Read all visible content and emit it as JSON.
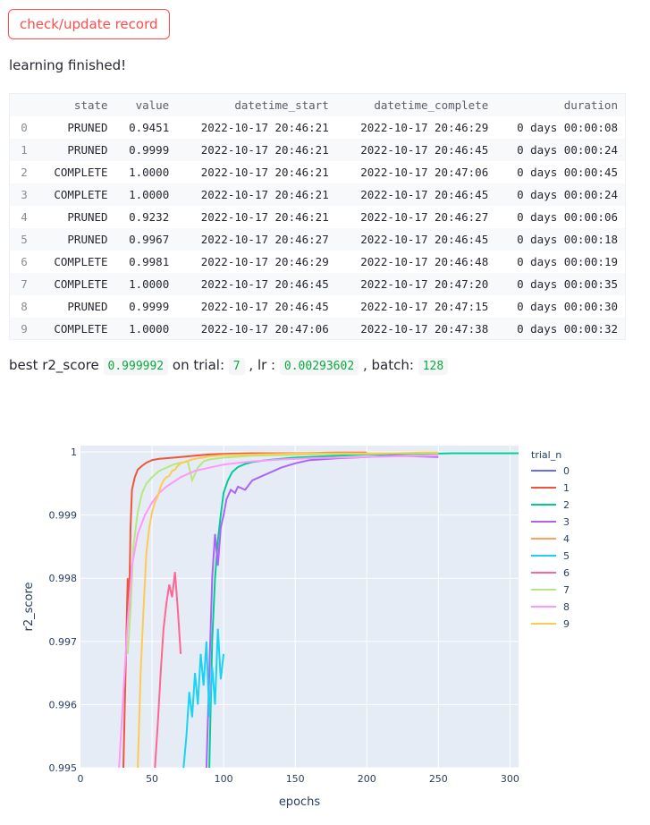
{
  "button": {
    "label": "check/update record"
  },
  "status_text": "learning finished!",
  "table": {
    "columns": [
      "",
      "state",
      "value",
      "datetime_start",
      "datetime_complete",
      "duration"
    ],
    "rows": [
      [
        "0",
        "PRUNED",
        "0.9451",
        "2022-10-17 20:46:21",
        "2022-10-17 20:46:29",
        "0 days 00:00:08"
      ],
      [
        "1",
        "PRUNED",
        "0.9999",
        "2022-10-17 20:46:21",
        "2022-10-17 20:46:45",
        "0 days 00:00:24"
      ],
      [
        "2",
        "COMPLETE",
        "1.0000",
        "2022-10-17 20:46:21",
        "2022-10-17 20:47:06",
        "0 days 00:00:45"
      ],
      [
        "3",
        "COMPLETE",
        "1.0000",
        "2022-10-17 20:46:21",
        "2022-10-17 20:46:45",
        "0 days 00:00:24"
      ],
      [
        "4",
        "PRUNED",
        "0.9232",
        "2022-10-17 20:46:21",
        "2022-10-17 20:46:27",
        "0 days 00:00:06"
      ],
      [
        "5",
        "PRUNED",
        "0.9967",
        "2022-10-17 20:46:27",
        "2022-10-17 20:46:45",
        "0 days 00:00:18"
      ],
      [
        "6",
        "COMPLETE",
        "0.9981",
        "2022-10-17 20:46:29",
        "2022-10-17 20:46:48",
        "0 days 00:00:19"
      ],
      [
        "7",
        "COMPLETE",
        "1.0000",
        "2022-10-17 20:46:45",
        "2022-10-17 20:47:20",
        "0 days 00:00:35"
      ],
      [
        "8",
        "PRUNED",
        "0.9999",
        "2022-10-17 20:46:45",
        "2022-10-17 20:47:15",
        "0 days 00:00:30"
      ],
      [
        "9",
        "COMPLETE",
        "1.0000",
        "2022-10-17 20:47:06",
        "2022-10-17 20:47:38",
        "0 days 00:00:32"
      ]
    ]
  },
  "best": {
    "prefix": "best r2_score",
    "score": "0.999992",
    "trial_label": "on trial:",
    "trial": "7",
    "lr_label": ", lr :",
    "lr": "0.00293602",
    "batch_label": ", batch:",
    "batch": "128"
  },
  "colors": {
    "accent": "#ff4b4b",
    "code_green": "#09ab3b",
    "plot_bg": "#e5ecf6"
  },
  "chart_data": {
    "type": "line",
    "xlabel": "epochs",
    "ylabel": "r2_score",
    "xlim": [
      0,
      306
    ],
    "ylim": [
      0.995,
      1.0001
    ],
    "xticks": [
      0,
      50,
      100,
      150,
      200,
      250,
      300
    ],
    "yticks": [
      0.995,
      0.996,
      0.997,
      0.998,
      0.999,
      1.0
    ],
    "ytick_labels": [
      "0.995",
      "0.996",
      "0.997",
      "0.998",
      "0.999",
      "1"
    ],
    "grid": true,
    "legend": {
      "title": "trial_n",
      "placement": "right"
    },
    "series": [
      {
        "name": "0",
        "color": "#636efa",
        "x": [],
        "y": []
      },
      {
        "name": "1",
        "color": "#ef553b",
        "x": [
          30,
          33,
          34,
          35,
          36,
          38,
          40,
          43,
          46,
          50,
          55,
          60,
          70,
          80,
          90,
          100,
          120,
          150,
          180,
          200
        ],
        "y": [
          0.995,
          0.998,
          0.9975,
          0.9988,
          0.9994,
          0.9996,
          0.99972,
          0.99978,
          0.99983,
          0.99987,
          0.99989,
          0.9999,
          0.99992,
          0.99994,
          0.99996,
          0.99997,
          0.99998,
          0.99998,
          0.99999,
          0.99999
        ]
      },
      {
        "name": "2",
        "color": "#00cc96",
        "x": [
          90,
          92,
          94,
          96,
          98,
          100,
          103,
          106,
          110,
          115,
          120,
          130,
          140,
          150,
          160,
          170,
          180,
          190,
          200,
          210,
          220,
          240,
          260,
          280,
          300,
          306
        ],
        "y": [
          0.995,
          0.997,
          0.998,
          0.9986,
          0.999,
          0.99935,
          0.99955,
          0.99968,
          0.99976,
          0.99981,
          0.99984,
          0.99987,
          0.99989,
          0.99991,
          0.99992,
          0.99993,
          0.99994,
          0.99995,
          0.99996,
          0.99996,
          0.99997,
          0.99997,
          0.99998,
          0.99998,
          0.99998,
          0.99998
        ]
      },
      {
        "name": "3",
        "color": "#ab63fa",
        "x": [
          88,
          90,
          92,
          94,
          96,
          98,
          100,
          102,
          105,
          108,
          110,
          115,
          120,
          130,
          140,
          150,
          160,
          180,
          200,
          220,
          250
        ],
        "y": [
          0.995,
          0.9965,
          0.998,
          0.9987,
          0.9982,
          0.9988,
          0.999,
          0.99925,
          0.9994,
          0.99935,
          0.99945,
          0.9994,
          0.99955,
          0.99965,
          0.99975,
          0.99982,
          0.99987,
          0.9999,
          0.99992,
          0.99994,
          0.99992
        ]
      },
      {
        "name": "4",
        "color": "#ffa15a",
        "x": [],
        "y": []
      },
      {
        "name": "5",
        "color": "#19d3f3",
        "x": [
          72,
          74,
          76,
          78,
          80,
          82,
          84,
          86,
          88,
          90,
          92,
          94,
          96,
          98,
          100
        ],
        "y": [
          0.995,
          0.9955,
          0.9962,
          0.9958,
          0.9965,
          0.996,
          0.9968,
          0.9963,
          0.997,
          0.9958,
          0.9966,
          0.996,
          0.9972,
          0.9964,
          0.9968
        ]
      },
      {
        "name": "6",
        "color": "#ff6692",
        "x": [
          52,
          54,
          56,
          58,
          60,
          62,
          64,
          66,
          68,
          70
        ],
        "y": [
          0.995,
          0.9957,
          0.9965,
          0.9972,
          0.9976,
          0.9979,
          0.9977,
          0.9981,
          0.9975,
          0.9968
        ]
      },
      {
        "name": "7",
        "color": "#b6e880",
        "x": [
          33,
          35,
          37,
          40,
          43,
          46,
          50,
          55,
          60,
          65,
          70,
          75,
          78,
          82,
          86,
          90,
          100,
          120,
          140,
          160,
          180,
          200,
          220,
          250
        ],
        "y": [
          0.9968,
          0.9975,
          0.9985,
          0.99905,
          0.99935,
          0.9995,
          0.9996,
          0.9997,
          0.99975,
          0.9998,
          0.99983,
          0.99985,
          0.99955,
          0.99975,
          0.99985,
          0.99988,
          0.99991,
          0.99994,
          0.99995,
          0.99996,
          0.99997,
          0.99997,
          0.99998,
          0.99998
        ]
      },
      {
        "name": "8",
        "color": "#ff97ff",
        "x": [
          27,
          30,
          33,
          36,
          40,
          45,
          50,
          55,
          60,
          70,
          80,
          90,
          100,
          120,
          140,
          160,
          180,
          200,
          220,
          250
        ],
        "y": [
          0.995,
          0.9962,
          0.9973,
          0.9982,
          0.9987,
          0.999,
          0.9992,
          0.99935,
          0.99945,
          0.9996,
          0.9997,
          0.99975,
          0.9998,
          0.99985,
          0.99988,
          0.9999,
          0.99991,
          0.99992,
          0.99993,
          0.99994
        ]
      },
      {
        "name": "9",
        "color": "#fecb52",
        "x": [
          40,
          42,
          44,
          46,
          48,
          50,
          52,
          54,
          56,
          58,
          60,
          62,
          64,
          66,
          68,
          70,
          74,
          78,
          82,
          86,
          90,
          100,
          120,
          140,
          160,
          180,
          200,
          220,
          240,
          250
        ],
        "y": [
          0.995,
          0.9965,
          0.9975,
          0.9984,
          0.9988,
          0.99905,
          0.9992,
          0.9993,
          0.99945,
          0.99955,
          0.9996,
          0.99962,
          0.9997,
          0.99972,
          0.99978,
          0.99982,
          0.99985,
          0.99988,
          0.9999,
          0.99991,
          0.99993,
          0.99995,
          0.99996,
          0.99997,
          0.99998,
          0.99998,
          0.99998,
          0.99998,
          0.99999,
          0.99999
        ]
      }
    ]
  }
}
